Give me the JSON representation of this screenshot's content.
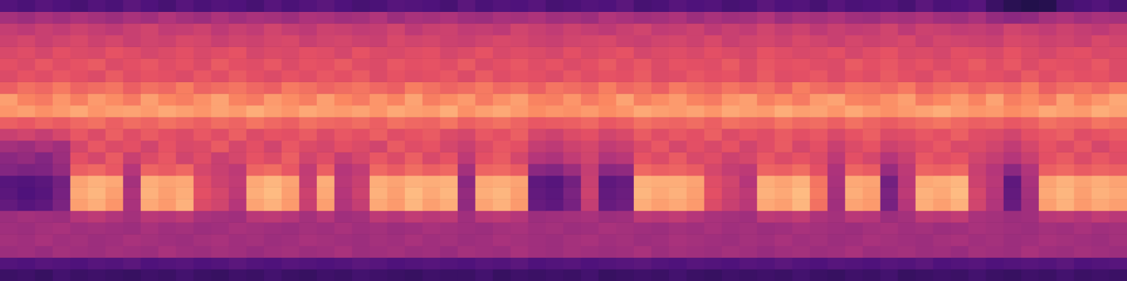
{
  "chart_data": {
    "type": "heatmap",
    "tick_labels": false,
    "zlim": [
      0,
      100
    ],
    "z": [
      [
        20,
        21,
        19,
        22,
        20,
        21,
        20,
        19,
        21,
        20,
        22,
        20,
        19,
        21,
        20,
        22,
        20,
        19,
        21,
        20,
        22,
        21,
        20,
        19,
        21,
        20,
        20,
        22,
        19,
        21,
        20,
        21,
        20,
        22,
        19,
        20,
        21,
        20,
        22,
        20,
        19,
        21,
        20,
        21,
        20,
        22,
        20,
        19,
        21,
        20,
        22,
        19,
        20,
        21,
        20,
        22,
        20,
        19,
        21,
        20,
        22,
        20,
        21,
        20
      ],
      [
        26,
        25,
        27,
        26,
        25,
        27,
        26,
        28,
        25,
        26,
        27,
        25,
        26,
        28,
        26,
        25,
        27,
        26,
        25,
        26,
        28,
        27,
        25,
        26,
        27,
        26,
        25,
        27,
        26,
        28,
        25,
        26,
        27,
        25,
        26,
        27,
        28,
        26,
        25,
        27,
        26,
        25,
        27,
        26,
        28,
        26,
        25,
        27,
        26,
        25,
        27,
        26,
        28,
        25,
        26,
        27,
        25,
        26,
        27,
        26,
        28,
        25,
        26,
        27
      ],
      [
        44,
        45,
        43,
        46,
        45,
        44,
        46,
        45,
        44,
        47,
        45,
        44,
        46,
        45,
        43,
        45,
        46,
        44,
        45,
        47,
        44,
        45,
        46,
        44,
        45,
        43,
        46,
        45,
        44,
        47,
        45,
        44,
        46,
        45,
        44,
        45,
        47,
        44,
        46,
        45,
        44,
        46,
        45,
        43,
        45,
        46,
        44,
        45,
        47,
        44,
        45,
        46,
        44,
        45,
        43,
        46,
        45,
        44,
        47,
        45,
        44,
        46,
        45,
        44
      ],
      [
        46,
        45,
        47,
        45,
        46,
        44,
        45,
        47,
        46,
        45,
        44,
        46,
        47,
        45,
        46,
        44,
        45,
        47,
        46,
        45,
        44,
        46,
        45,
        47,
        45,
        46,
        44,
        45,
        47,
        46,
        45,
        44,
        46,
        47,
        45,
        46,
        44,
        45,
        47,
        46,
        45,
        44,
        46,
        45,
        47,
        45,
        46,
        44,
        45,
        47,
        46,
        45,
        44,
        46,
        47,
        45,
        46,
        44,
        45,
        47,
        46,
        45,
        44,
        46
      ],
      [
        45,
        44,
        46,
        47,
        45,
        46,
        45,
        44,
        47,
        45,
        46,
        44,
        45,
        47,
        46,
        45,
        44,
        46,
        45,
        47,
        45,
        46,
        44,
        45,
        47,
        46,
        45,
        44,
        46,
        47,
        45,
        46,
        44,
        45,
        47,
        46,
        45,
        44,
        46,
        45,
        47,
        45,
        46,
        44,
        45,
        47,
        46,
        45,
        44,
        46,
        47,
        45,
        46,
        44,
        45,
        47,
        46,
        45,
        44,
        46,
        45,
        47,
        45,
        46
      ],
      [
        44,
        46,
        45,
        44,
        50,
        52,
        49,
        46,
        51,
        50,
        52,
        47,
        46,
        45,
        51,
        52,
        50,
        46,
        50,
        45,
        46,
        52,
        50,
        53,
        51,
        52,
        45,
        51,
        52,
        50,
        44,
        45,
        46,
        47,
        44,
        45,
        52,
        51,
        53,
        50,
        47,
        46,
        45,
        52,
        51,
        53,
        48,
        46,
        51,
        50,
        44,
        46,
        52,
        51,
        53,
        47,
        46,
        44,
        45,
        51,
        52,
        50,
        53,
        51
      ],
      [
        30,
        27,
        29,
        36,
        80,
        83,
        78,
        47,
        82,
        79,
        84,
        60,
        57,
        50,
        81,
        84,
        79,
        55,
        80,
        49,
        54,
        82,
        79,
        85,
        80,
        83,
        41,
        81,
        84,
        79,
        31,
        29,
        35,
        54,
        31,
        33,
        83,
        80,
        82,
        79,
        60,
        55,
        51,
        82,
        80,
        85,
        70,
        45,
        81,
        79,
        35,
        50,
        83,
        80,
        84,
        57,
        49,
        31,
        45,
        80,
        84,
        79,
        82,
        80
      ],
      [
        28,
        25,
        27,
        35,
        82,
        85,
        80,
        48,
        84,
        80,
        83,
        62,
        58,
        52,
        83,
        86,
        80,
        56,
        82,
        50,
        56,
        84,
        80,
        86,
        82,
        85,
        42,
        83,
        85,
        80,
        30,
        28,
        36,
        56,
        30,
        32,
        85,
        82,
        84,
        80,
        62,
        56,
        52,
        84,
        82,
        86,
        72,
        46,
        83,
        80,
        36,
        52,
        84,
        82,
        86,
        58,
        50,
        30,
        46,
        82,
        85,
        80,
        84,
        82
      ],
      [
        27,
        26,
        28,
        34,
        81,
        84,
        82,
        46,
        83,
        81,
        82,
        61,
        56,
        53,
        82,
        85,
        81,
        54,
        83,
        51,
        55,
        83,
        81,
        84,
        83,
        84,
        40,
        82,
        83,
        81,
        29,
        27,
        34,
        55,
        29,
        31,
        84,
        83,
        83,
        81,
        61,
        57,
        50,
        83,
        81,
        84,
        71,
        47,
        82,
        81,
        34,
        51,
        82,
        83,
        85,
        56,
        51,
        29,
        47,
        81,
        84,
        81,
        83,
        81
      ],
      [
        38,
        36,
        37,
        42,
        66,
        68,
        64,
        50,
        67,
        65,
        68,
        58,
        55,
        52,
        67,
        69,
        64,
        53,
        66,
        50,
        53,
        68,
        65,
        69,
        66,
        68,
        46,
        67,
        68,
        65,
        40,
        38,
        44,
        54,
        40,
        41,
        68,
        66,
        67,
        65,
        58,
        54,
        52,
        67,
        66,
        69,
        62,
        48,
        67,
        65,
        43,
        52,
        67,
        66,
        68,
        55,
        50,
        40,
        49,
        66,
        68,
        65,
        67,
        66
      ],
      [
        40,
        42,
        38,
        44,
        62,
        58,
        65,
        55,
        60,
        64,
        57,
        61,
        55,
        58,
        63,
        60,
        66,
        57,
        61,
        54,
        58,
        64,
        60,
        66,
        59,
        63,
        52,
        62,
        65,
        58,
        50,
        48,
        53,
        57,
        49,
        51,
        63,
        60,
        65,
        59,
        61,
        56,
        58,
        64,
        60,
        63,
        60,
        52,
        62,
        58,
        50,
        55,
        64,
        61,
        63,
        57,
        54,
        50,
        55,
        62,
        65,
        60,
        64,
        61
      ],
      [
        46,
        44,
        48,
        45,
        58,
        64,
        60,
        62,
        57,
        63,
        59,
        60,
        65,
        58,
        62,
        57,
        64,
        60,
        58,
        62,
        60,
        57,
        65,
        61,
        63,
        58,
        55,
        60,
        64,
        62,
        54,
        52,
        56,
        58,
        53,
        55,
        60,
        64,
        58,
        62,
        59,
        63,
        57,
        61,
        65,
        58,
        62,
        55,
        60,
        63,
        56,
        58,
        61,
        64,
        59,
        60,
        57,
        53,
        58,
        63,
        60,
        64,
        58,
        62
      ],
      [
        55,
        57,
        54,
        58,
        64,
        60,
        66,
        61,
        65,
        62,
        60,
        64,
        61,
        66,
        60,
        63,
        62,
        65,
        60,
        64,
        62,
        66,
        61,
        63,
        65,
        60,
        58,
        64,
        62,
        66,
        58,
        56,
        60,
        62,
        57,
        59,
        65,
        61,
        64,
        62,
        66,
        60,
        63,
        61,
        65,
        62,
        64,
        59,
        63,
        66,
        60,
        61,
        64,
        62,
        66,
        61,
        60,
        57,
        62,
        64,
        66,
        61,
        63,
        65
      ],
      [
        66,
        64,
        67,
        65,
        68,
        70,
        66,
        69,
        67,
        70,
        68,
        66,
        69,
        67,
        71,
        68,
        66,
        70,
        68,
        67,
        69,
        66,
        70,
        68,
        67,
        71,
        66,
        68,
        70,
        67,
        64,
        65,
        66,
        68,
        64,
        66,
        70,
        68,
        67,
        69,
        66,
        70,
        68,
        67,
        71,
        68,
        69,
        66,
        70,
        67,
        65,
        67,
        69,
        71,
        68,
        66,
        67,
        64,
        66,
        70,
        68,
        67,
        71,
        69
      ],
      [
        78,
        80,
        77,
        79,
        82,
        78,
        80,
        81,
        79,
        82,
        80,
        78,
        81,
        79,
        83,
        80,
        78,
        82,
        80,
        79,
        81,
        78,
        82,
        80,
        79,
        83,
        77,
        80,
        82,
        79,
        76,
        78,
        77,
        79,
        76,
        78,
        82,
        80,
        79,
        81,
        78,
        82,
        80,
        79,
        83,
        80,
        81,
        78,
        82,
        79,
        77,
        79,
        81,
        83,
        80,
        78,
        79,
        76,
        78,
        82,
        80,
        79,
        83,
        81
      ],
      [
        80,
        74,
        72,
        78,
        73,
        79,
        76,
        72,
        80,
        75,
        73,
        77,
        81,
        74,
        72,
        79,
        76,
        73,
        80,
        75,
        72,
        78,
        74,
        81,
        73,
        76,
        79,
        72,
        77,
        80,
        74,
        73,
        78,
        72,
        75,
        81,
        73,
        76,
        79,
        74,
        72,
        78,
        80,
        73,
        76,
        72,
        79,
        81,
        74,
        73,
        77,
        80,
        72,
        75,
        79,
        74,
        81,
        73,
        76,
        72,
        80,
        74,
        78,
        82
      ],
      [
        66,
        70,
        68,
        72,
        67,
        69,
        71,
        66,
        70,
        68,
        73,
        67,
        69,
        71,
        68,
        66,
        72,
        70,
        67,
        69,
        71,
        68,
        66,
        73,
        70,
        67,
        69,
        72,
        68,
        70,
        66,
        71,
        69,
        67,
        73,
        68,
        70,
        66,
        72,
        69,
        67,
        71,
        68,
        70,
        66,
        73,
        69,
        67,
        71,
        70,
        68,
        72,
        66,
        69,
        71,
        67,
        70,
        68,
        73,
        66,
        69,
        71,
        68,
        72
      ],
      [
        60,
        63,
        61,
        64,
        62,
        60,
        65,
        61,
        63,
        62,
        60,
        64,
        61,
        65,
        62,
        60,
        63,
        61,
        64,
        62,
        65,
        60,
        63,
        61,
        62,
        64,
        60,
        65,
        61,
        63,
        62,
        60,
        64,
        61,
        63,
        62,
        65,
        60,
        61,
        64,
        62,
        63,
        60,
        65,
        61,
        62,
        64,
        60,
        63,
        61,
        65,
        62,
        60,
        64,
        61,
        63,
        62,
        60,
        65,
        61,
        64,
        62,
        63,
        60
      ],
      [
        62,
        60,
        64,
        61,
        63,
        65,
        60,
        62,
        64,
        61,
        63,
        60,
        65,
        62,
        61,
        64,
        60,
        63,
        62,
        65,
        61,
        60,
        64,
        62,
        63,
        61,
        65,
        60,
        62,
        64,
        61,
        63,
        60,
        62,
        65,
        61,
        64,
        60,
        63,
        62,
        61,
        65,
        60,
        64,
        62,
        63,
        61,
        60,
        65,
        62,
        64,
        61,
        63,
        60,
        62,
        65,
        61,
        64,
        60,
        63,
        62,
        61,
        64,
        60
      ],
      [
        59,
        61,
        58,
        62,
        60,
        59,
        63,
        61,
        58,
        60,
        62,
        59,
        61,
        63,
        58,
        60,
        59,
        62,
        61,
        58,
        63,
        60,
        59,
        61,
        62,
        58,
        60,
        63,
        59,
        61,
        60,
        58,
        62,
        59,
        61,
        63,
        58,
        60,
        61,
        59,
        62,
        60,
        58,
        63,
        61,
        59,
        60,
        62,
        58,
        61,
        63,
        59,
        60,
        58,
        62,
        61,
        59,
        63,
        60,
        58,
        61,
        62,
        59,
        60
      ],
      [
        56,
        58,
        55,
        57,
        59,
        56,
        58,
        55,
        57,
        56,
        59,
        58,
        55,
        57,
        56,
        58,
        59,
        55,
        57,
        58,
        56,
        55,
        59,
        57,
        58,
        56,
        55,
        57,
        59,
        58,
        56,
        55,
        57,
        58,
        59,
        56,
        55,
        57,
        58,
        56,
        59,
        55,
        57,
        58,
        56,
        59,
        57,
        55,
        58,
        56,
        57,
        59,
        55,
        58,
        57,
        56,
        55,
        59,
        58,
        56,
        57,
        55,
        59,
        57
      ],
      [
        54,
        52,
        55,
        53,
        56,
        54,
        52,
        55,
        57,
        53,
        54,
        56,
        52,
        55,
        53,
        57,
        54,
        52,
        56,
        55,
        53,
        54,
        57,
        52,
        55,
        56,
        53,
        54,
        52,
        57,
        55,
        53,
        56,
        54,
        52,
        55,
        57,
        53,
        54,
        56,
        52,
        55,
        53,
        57,
        54,
        56,
        52,
        55,
        53,
        54,
        57,
        52,
        56,
        55,
        53,
        54,
        52,
        57,
        55,
        53,
        56,
        54,
        52,
        55
      ],
      [
        46,
        44,
        47,
        45,
        48,
        46,
        44,
        47,
        45,
        49,
        46,
        44,
        48,
        45,
        47,
        46,
        44,
        48,
        47,
        45,
        46,
        49,
        44,
        47,
        46,
        48,
        45,
        44,
        47,
        46,
        48,
        45,
        46,
        44,
        49,
        47,
        45,
        46,
        48,
        44,
        47,
        45,
        46,
        49,
        44,
        47,
        46,
        48,
        45,
        44,
        47,
        46,
        48,
        45,
        44,
        47,
        42,
        40,
        41,
        46,
        48,
        45,
        47,
        46
      ],
      [
        26,
        24,
        27,
        25,
        23,
        26,
        24,
        28,
        25,
        23,
        27,
        24,
        26,
        25,
        23,
        27,
        24,
        26,
        28,
        25,
        23,
        24,
        27,
        26,
        25,
        23,
        28,
        24,
        26,
        25,
        27,
        23,
        24,
        26,
        25,
        28,
        23,
        24,
        27,
        25,
        26,
        23,
        24,
        28,
        25,
        26,
        23,
        27,
        24,
        25,
        26,
        23,
        28,
        24,
        25,
        27,
        20,
        16,
        14,
        15,
        22,
        24,
        26,
        23
      ]
    ]
  }
}
